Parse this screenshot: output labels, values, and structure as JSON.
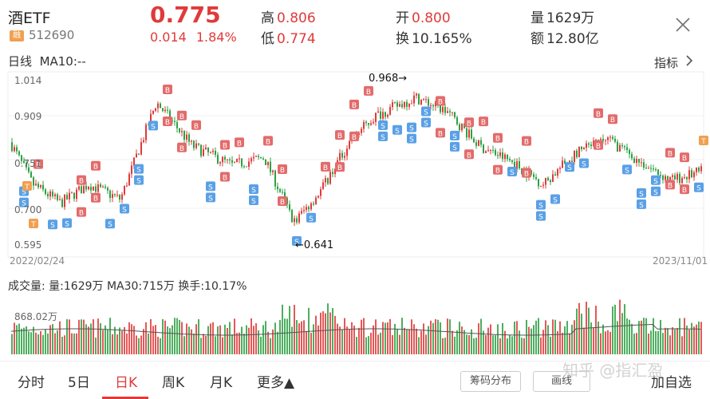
{
  "header": {
    "name": "酒ETF",
    "badge": "融",
    "code": "512690",
    "price": "0.775",
    "change": "0.014",
    "change_pct": "1.84%",
    "high_label": "高",
    "high_value": "0.806",
    "low_label": "低",
    "low_value": "0.774",
    "open_label": "开",
    "open_value": "0.800",
    "turnover_label": "换",
    "turnover_value": "10.165%",
    "volume_label": "量",
    "volume_value": "1629万",
    "amount_label": "额",
    "amount_value": "12.80亿"
  },
  "kline": {
    "title": "日线",
    "ma_label": "MA10:--",
    "indicator_label": "指标",
    "y_ticks": [
      "1.014",
      "0.909",
      "0.751",
      "0.700",
      "0.595"
    ],
    "start_date": "2022/02/24",
    "end_date": "2023/11/01",
    "max_annot": "0.968→",
    "min_annot": "←0.641"
  },
  "volume": {
    "title": "成交量: 量:1629万 MA30:715万 换手:10.17%",
    "y_tick": "868.02万"
  },
  "tabs": [
    "分时",
    "5日",
    "日K",
    "周K",
    "月K",
    "更多▲"
  ],
  "buttons": {
    "chip": "筹码分布",
    "draw": "画线",
    "add": "加自选"
  },
  "watermark": "知乎 @指汇盈",
  "colors": {
    "up": "#e03a3a",
    "down": "#2ea043",
    "buy": "#e36b6b",
    "sell": "#5aa0e6",
    "t": "#f0a050"
  },
  "chart_data": {
    "type": "candlestick",
    "y_range": [
      0.595,
      1.014
    ],
    "y_ticks": [
      1.014,
      0.909,
      0.751,
      0.7,
      0.595
    ],
    "x_range": [
      "2022/02/24",
      "2023/11/01"
    ],
    "max": 0.968,
    "min": 0.641,
    "last_close": 0.775
  }
}
